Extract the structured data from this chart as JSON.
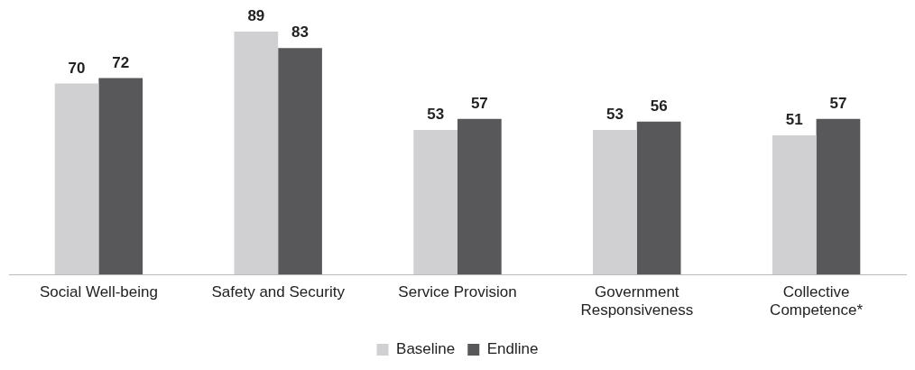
{
  "chart_data": {
    "type": "bar",
    "categories": [
      "Social Well-being",
      "Safety and Security",
      "Service Provision",
      "Government Responsiveness",
      "Collective Competence*"
    ],
    "series": [
      {
        "name": "Baseline",
        "color": "#d0d0d2",
        "values": [
          70,
          89,
          53,
          53,
          51
        ]
      },
      {
        "name": "Endline",
        "color": "#58585a",
        "values": [
          72,
          83,
          57,
          56,
          57
        ]
      }
    ],
    "tick_labels": "x",
    "data_labels": true,
    "grid": false,
    "legend": "bottom"
  }
}
